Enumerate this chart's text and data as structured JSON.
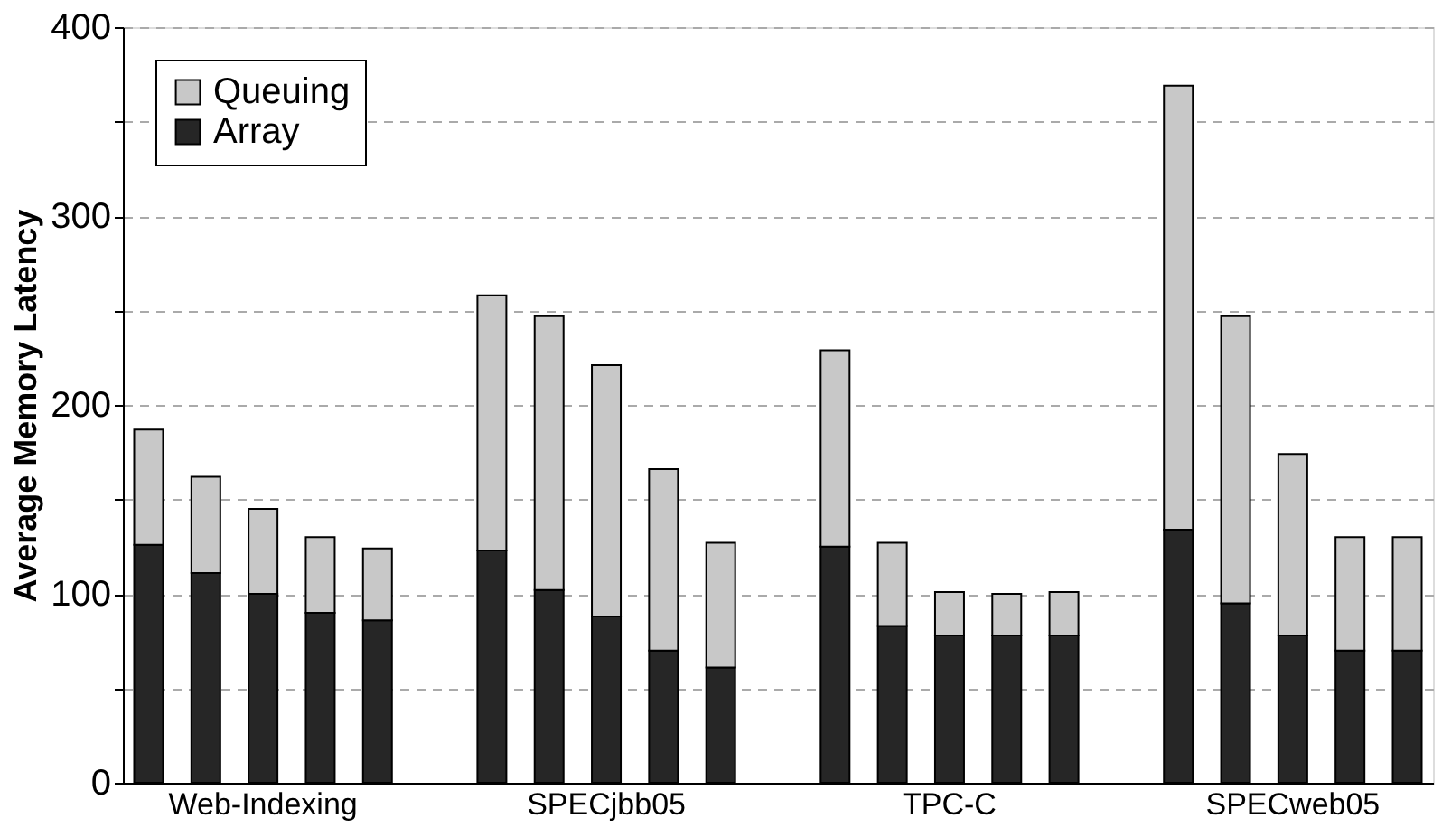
{
  "chart_data": {
    "type": "bar",
    "stacked": true,
    "ylabel": "Average Memory Latency",
    "categories": [
      null,
      null,
      "Web-Indexing",
      null,
      null,
      null,
      null,
      null,
      "SPECjbb05",
      null,
      null,
      null,
      null,
      null,
      "TPC-C",
      null,
      null,
      null,
      null,
      null,
      "SPECweb05",
      null,
      null
    ],
    "series": [
      {
        "name": "Array",
        "color": "#262626",
        "values": [
          126,
          111,
          100,
          90,
          86,
          null,
          123,
          102,
          88,
          70,
          61,
          null,
          125,
          83,
          78,
          78,
          78,
          null,
          134,
          95,
          78,
          70,
          70
        ]
      },
      {
        "name": "Queuing",
        "color": "#c8c8c8",
        "values": [
          61,
          51,
          45,
          40,
          38,
          null,
          135,
          145,
          133,
          96,
          66,
          null,
          104,
          44,
          23,
          22,
          23,
          null,
          235,
          152,
          96,
          60,
          60
        ]
      }
    ],
    "ylim": [
      0,
      400
    ],
    "yticks": [
      0,
      {
        "value": 50,
        "label": null
      },
      100,
      {
        "value": 150,
        "label": null
      },
      200,
      {
        "value": 250,
        "label": null
      },
      300,
      {
        "value": 350,
        "label": null
      },
      400
    ],
    "grid": "y",
    "line_style": "dashed",
    "legend": "top left"
  }
}
